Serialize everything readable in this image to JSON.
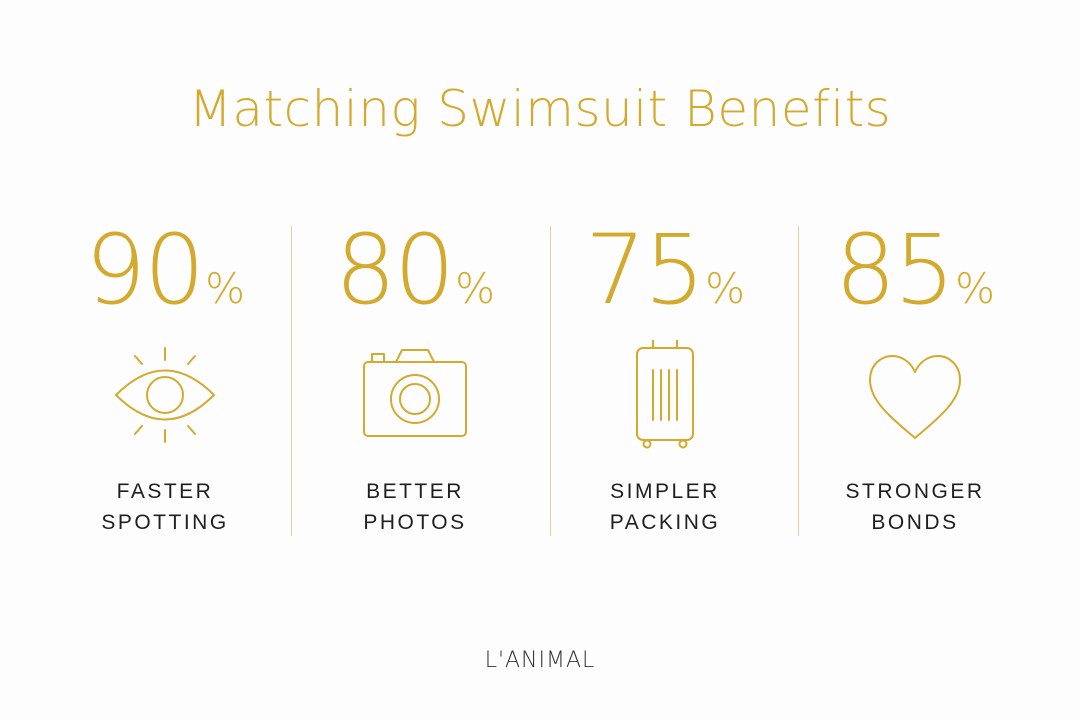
{
  "title": "Matching Swimsuit Benefits",
  "accent_color": "#d4aa2e",
  "label_color": "#1f1f1f",
  "stats": [
    {
      "value": "90",
      "unit": "%",
      "icon": "eye-icon",
      "label_line1": "FASTER",
      "label_line2": "SPOTTING"
    },
    {
      "value": "80",
      "unit": "%",
      "icon": "camera-icon",
      "label_line1": "BETTER",
      "label_line2": "PHOTOS"
    },
    {
      "value": "75",
      "unit": "%",
      "icon": "suitcase-icon",
      "label_line1": "SIMPLER",
      "label_line2": "PACKING"
    },
    {
      "value": "85",
      "unit": "%",
      "icon": "heart-icon",
      "label_line1": "STRONGER",
      "label_line2": "BONDS"
    }
  ],
  "brand": "L'ANIMAL"
}
